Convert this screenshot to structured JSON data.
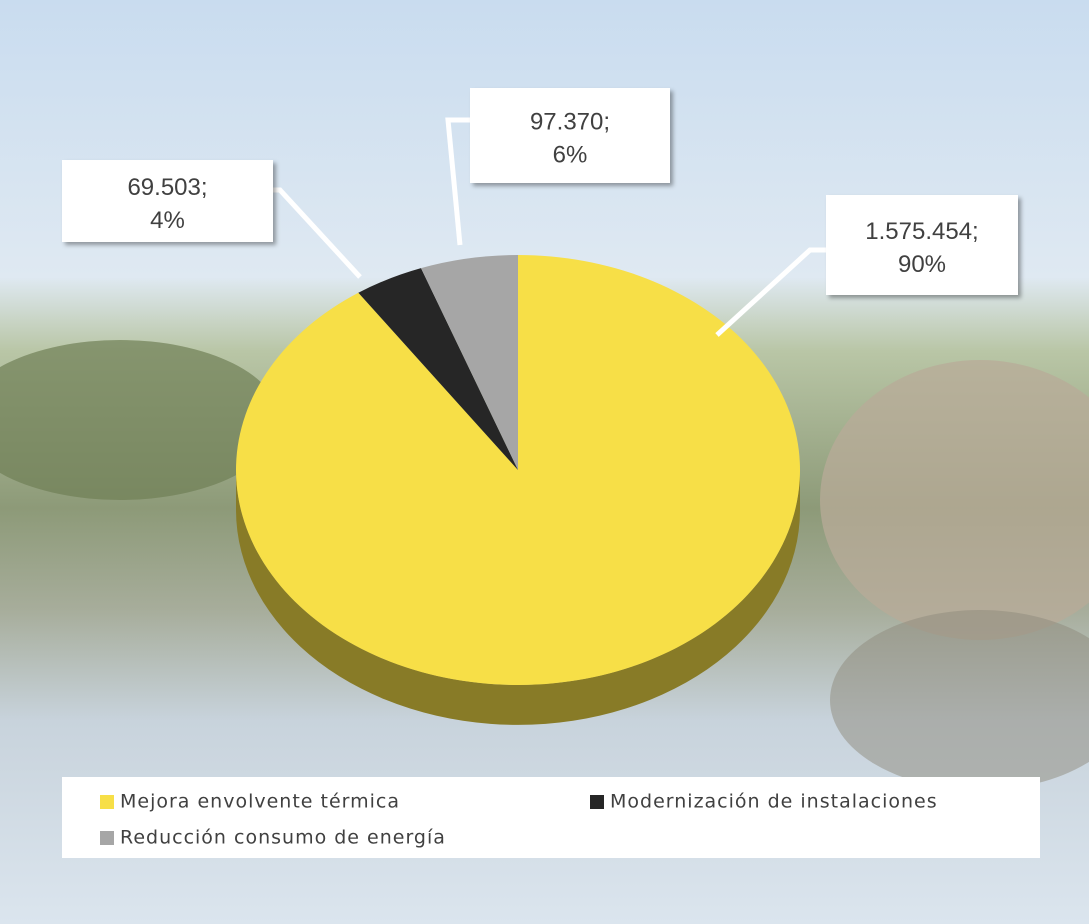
{
  "chart_data": {
    "type": "pie3d",
    "categories": [
      "Mejora envolvente térmica",
      "Modernización de instalaciones",
      "Reducción consumo de energía"
    ],
    "values": [
      1575454,
      69503,
      97370
    ],
    "value_labels": [
      [
        "1.575.454;",
        "90%"
      ],
      [
        "69.503;",
        "4%"
      ],
      [
        "97.370;",
        "6%"
      ]
    ],
    "colors": [
      "#f7df47",
      "#262626",
      "#a6a6a6"
    ],
    "legend": "bottom"
  }
}
